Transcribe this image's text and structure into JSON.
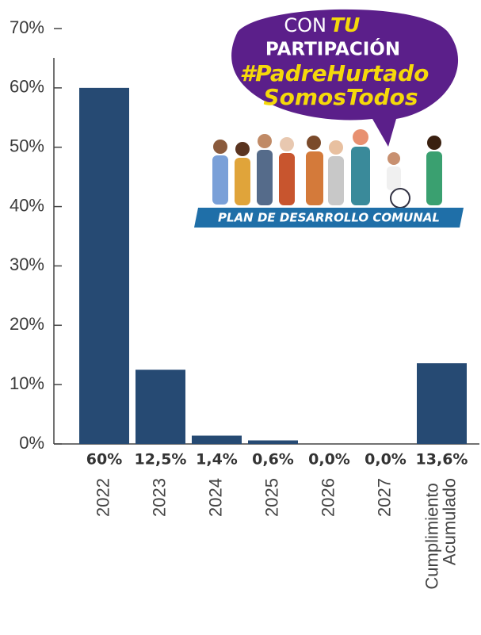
{
  "chart_data": {
    "type": "bar",
    "categories": [
      "2022",
      "2023",
      "2024",
      "2025",
      "2026",
      "2027",
      "Cumplimiento Acumulado"
    ],
    "values": [
      60,
      12.5,
      1.4,
      0.6,
      0,
      0,
      13.6
    ],
    "value_labels": [
      "60%",
      "12,5%",
      "1,4%",
      "0,6%",
      "0,0%",
      "0,0%",
      "13,6%"
    ],
    "color": "#264a73",
    "ylim": [
      0,
      70
    ],
    "yticks": [
      {
        "value": 0,
        "label": "0%"
      },
      {
        "value": 10,
        "label": "10%"
      },
      {
        "value": 20,
        "label": "20%"
      },
      {
        "value": 30,
        "label": "30%"
      },
      {
        "value": 40,
        "label": "40%"
      },
      {
        "value": 50,
        "label": "50%"
      },
      {
        "value": 60,
        "label": "60%"
      },
      {
        "value": 70,
        "label": "70%"
      }
    ],
    "grid": false,
    "annotations": [
      "CON",
      "TU",
      "PARTIPACIÓN",
      "#PadreHurtado",
      "SomosTodos",
      "PLAN DE DESARROLLO COMUNAL"
    ]
  }
}
